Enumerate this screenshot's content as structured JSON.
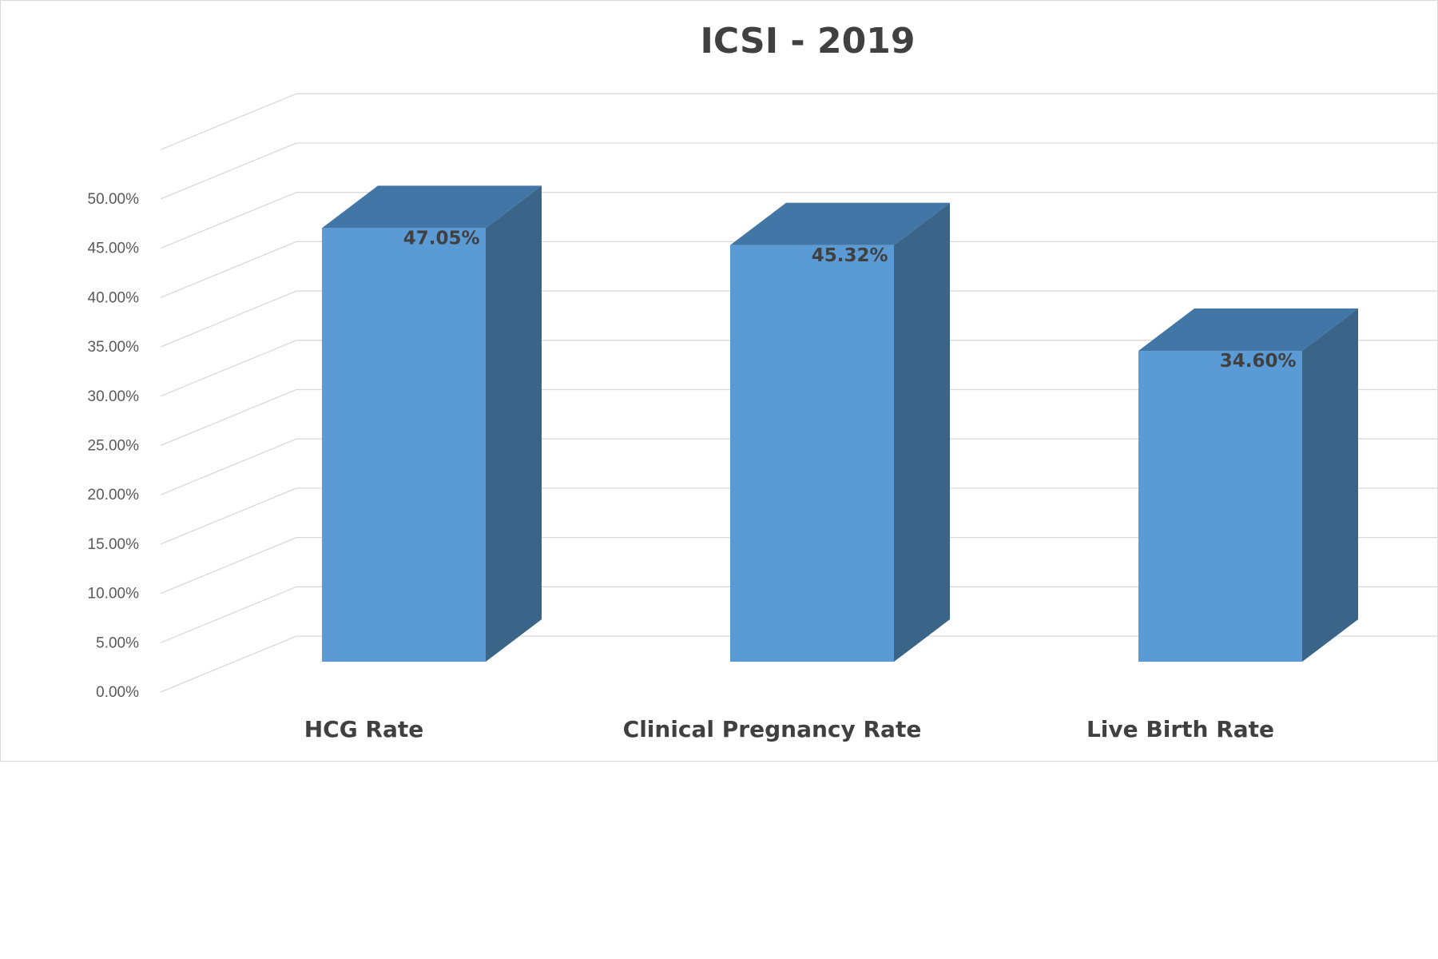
{
  "chart_data": {
    "type": "bar",
    "style": "3d-column",
    "title": "ICSI - 2019",
    "categories": [
      "HCG Rate",
      "Clinical Pregnancy Rate",
      "Live Birth Rate"
    ],
    "values": [
      47.05,
      45.32,
      34.6
    ],
    "data_labels": [
      "47.05%",
      "45.32%",
      "34.60%"
    ],
    "yticks": [
      "0.00%",
      "5.00%",
      "10.00%",
      "15.00%",
      "20.00%",
      "25.00%",
      "30.00%",
      "35.00%",
      "40.00%",
      "45.00%",
      "50.00%"
    ],
    "ylim": [
      0,
      55
    ],
    "grid": true,
    "legend": "none",
    "colors": {
      "front": "#5b9bd5",
      "top": "#4276a6",
      "side": "#3a6589",
      "grid": "#d9d9d9"
    }
  }
}
